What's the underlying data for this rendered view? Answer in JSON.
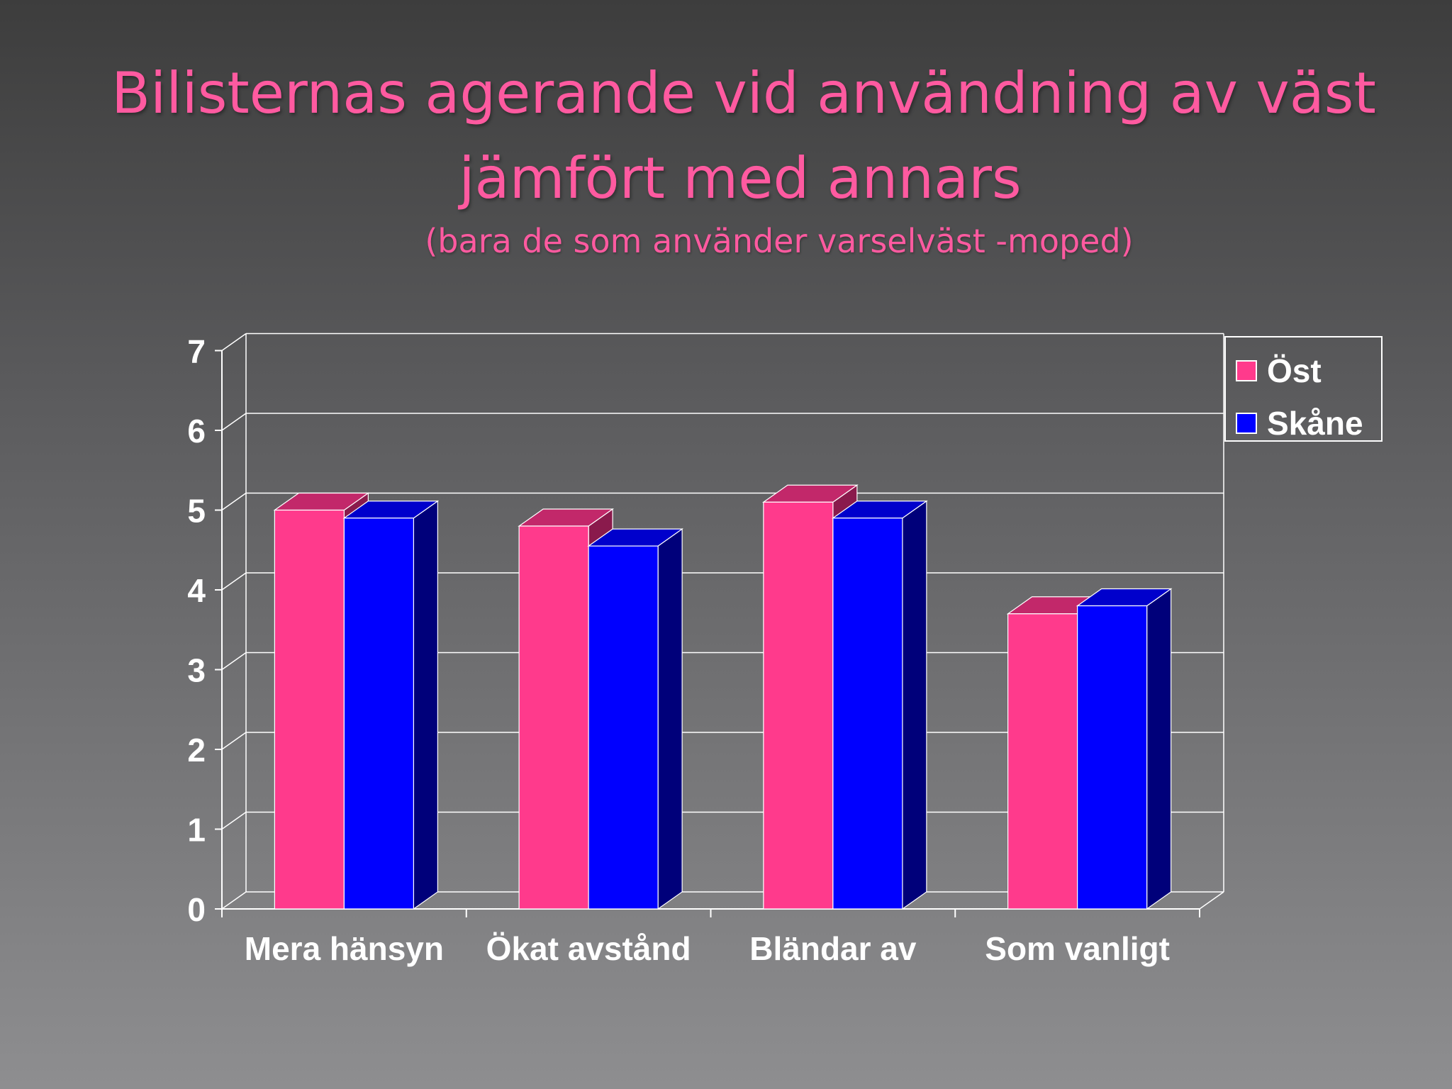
{
  "slide": {
    "title_line1": "Bilisternas agerande vid användning av väst",
    "title_line2": "jämfört med annars",
    "subtitle": "(bara de som använder varselväst -moped)"
  },
  "colors": {
    "title": "#ff5aa0",
    "ost_front": "#ff3a8c",
    "ost_top": "#c2286a",
    "ost_side": "#8a1a4c",
    "skane_front": "#0000ff",
    "skane_top": "#0000cc",
    "skane_side": "#00007a",
    "axis": "#ffffff"
  },
  "chart_data": {
    "type": "bar",
    "categories": [
      "Mera hänsyn",
      "Ökat avstånd",
      "Bländar av",
      "Som vanligt"
    ],
    "series": [
      {
        "name": "Öst",
        "values": [
          5.0,
          4.8,
          5.1,
          3.7
        ]
      },
      {
        "name": "Skåne",
        "values": [
          4.9,
          4.55,
          4.9,
          3.8
        ]
      }
    ],
    "y_ticks": [
      "0",
      "1",
      "2",
      "3",
      "4",
      "5",
      "6",
      "7"
    ],
    "ylim": [
      0,
      7
    ],
    "grid": true,
    "legend_position": "top-right",
    "style": "3d"
  }
}
